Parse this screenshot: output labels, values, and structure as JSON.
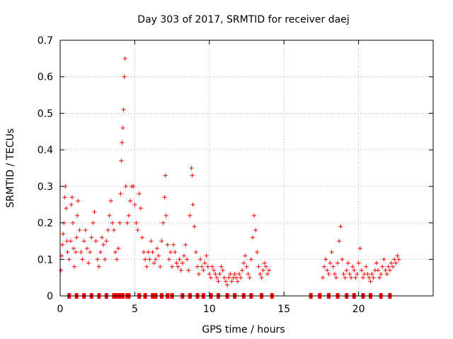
{
  "chart_data": {
    "type": "scatter",
    "title": "Day 303 of 2017, SRMTID for receiver daej",
    "xlabel": "GPS time / hours",
    "ylabel": "SRMTID / TECUs",
    "xlim": [
      0,
      25
    ],
    "ylim": [
      0,
      0.7
    ],
    "x_ticks": [
      0,
      5,
      10,
      15,
      20
    ],
    "x_tick_labels": [
      "0",
      "5",
      "10",
      "15",
      "20"
    ],
    "y_ticks": [
      0,
      0.1,
      0.2,
      0.3,
      0.4,
      0.5,
      0.6,
      0.7
    ],
    "y_tick_labels": [
      "0",
      "0.1",
      "0.2",
      "0.3",
      "0.4",
      "0.5",
      "0.6",
      "0.7"
    ],
    "grid": true,
    "marker": "+",
    "series_color": "#ff0000",
    "series": [
      {
        "name": "SRMTID",
        "points": [
          [
            0.05,
            0.07
          ],
          [
            0.1,
            0.11
          ],
          [
            0.15,
            0.14
          ],
          [
            0.2,
            0.17
          ],
          [
            0.25,
            0.2
          ],
          [
            0.3,
            0.27
          ],
          [
            0.35,
            0.3
          ],
          [
            0.4,
            0.24
          ],
          [
            0.45,
            0.15
          ],
          [
            0.5,
            0.12
          ],
          [
            0.6,
            0.1
          ],
          [
            0.7,
            0.15
          ],
          [
            0.75,
            0.25
          ],
          [
            0.8,
            0.27
          ],
          [
            0.85,
            0.2
          ],
          [
            0.9,
            0.13
          ],
          [
            0.95,
            0.08
          ],
          [
            1.05,
            0.12
          ],
          [
            1.1,
            0.16
          ],
          [
            1.15,
            0.22
          ],
          [
            1.2,
            0.26
          ],
          [
            1.3,
            0.18
          ],
          [
            1.4,
            0.12
          ],
          [
            1.5,
            0.1
          ],
          [
            1.6,
            0.15
          ],
          [
            1.7,
            0.18
          ],
          [
            1.8,
            0.13
          ],
          [
            1.9,
            0.09
          ],
          [
            2.0,
            0.12
          ],
          [
            2.1,
            0.16
          ],
          [
            2.2,
            0.2
          ],
          [
            2.3,
            0.23
          ],
          [
            2.4,
            0.15
          ],
          [
            2.5,
            0.1
          ],
          [
            2.6,
            0.08
          ],
          [
            2.7,
            0.12
          ],
          [
            2.8,
            0.16
          ],
          [
            2.9,
            0.14
          ],
          [
            3.0,
            0.1
          ],
          [
            3.1,
            0.15
          ],
          [
            3.2,
            0.18
          ],
          [
            3.3,
            0.22
          ],
          [
            3.4,
            0.26
          ],
          [
            3.5,
            0.2
          ],
          [
            3.6,
            0.18
          ],
          [
            3.7,
            0.12
          ],
          [
            3.8,
            0.1
          ],
          [
            3.9,
            0.13
          ],
          [
            4.0,
            0.2
          ],
          [
            4.05,
            0.28
          ],
          [
            4.1,
            0.37
          ],
          [
            4.15,
            0.42
          ],
          [
            4.2,
            0.46
          ],
          [
            4.25,
            0.51
          ],
          [
            4.3,
            0.6
          ],
          [
            4.35,
            0.65
          ],
          [
            4.4,
            0.3
          ],
          [
            4.5,
            0.2
          ],
          [
            4.6,
            0.22
          ],
          [
            4.7,
            0.26
          ],
          [
            4.8,
            0.3
          ],
          [
            4.9,
            0.3
          ],
          [
            5.0,
            0.25
          ],
          [
            5.1,
            0.2
          ],
          [
            5.2,
            0.18
          ],
          [
            5.3,
            0.28
          ],
          [
            5.4,
            0.24
          ],
          [
            5.5,
            0.16
          ],
          [
            5.6,
            0.12
          ],
          [
            5.7,
            0.1
          ],
          [
            5.8,
            0.08
          ],
          [
            5.9,
            0.12
          ],
          [
            6.0,
            0.1
          ],
          [
            6.1,
            0.15
          ],
          [
            6.2,
            0.12
          ],
          [
            6.3,
            0.09
          ],
          [
            6.4,
            0.1
          ],
          [
            6.5,
            0.13
          ],
          [
            6.6,
            0.11
          ],
          [
            6.7,
            0.08
          ],
          [
            6.8,
            0.15
          ],
          [
            6.9,
            0.2
          ],
          [
            7.0,
            0.27
          ],
          [
            7.05,
            0.33
          ],
          [
            7.1,
            0.22
          ],
          [
            7.2,
            0.14
          ],
          [
            7.3,
            0.1
          ],
          [
            7.4,
            0.12
          ],
          [
            7.5,
            0.08
          ],
          [
            7.6,
            0.14
          ],
          [
            7.7,
            0.12
          ],
          [
            7.8,
            0.09
          ],
          [
            7.9,
            0.08
          ],
          [
            8.0,
            0.1
          ],
          [
            8.1,
            0.07
          ],
          [
            8.2,
            0.09
          ],
          [
            8.3,
            0.11
          ],
          [
            8.4,
            0.14
          ],
          [
            8.5,
            0.1
          ],
          [
            8.6,
            0.07
          ],
          [
            8.7,
            0.22
          ],
          [
            8.8,
            0.35
          ],
          [
            8.85,
            0.33
          ],
          [
            8.9,
            0.25
          ],
          [
            9.0,
            0.19
          ],
          [
            9.1,
            0.12
          ],
          [
            9.2,
            0.08
          ],
          [
            9.3,
            0.06
          ],
          [
            9.4,
            0.1
          ],
          [
            9.5,
            0.08
          ],
          [
            9.6,
            0.07
          ],
          [
            9.7,
            0.09
          ],
          [
            9.8,
            0.11
          ],
          [
            9.9,
            0.08
          ],
          [
            10.0,
            0.06
          ],
          [
            10.1,
            0.05
          ],
          [
            10.2,
            0.08
          ],
          [
            10.3,
            0.07
          ],
          [
            10.4,
            0.06
          ],
          [
            10.5,
            0.05
          ],
          [
            10.6,
            0.04
          ],
          [
            10.7,
            0.06
          ],
          [
            10.8,
            0.08
          ],
          [
            10.9,
            0.07
          ],
          [
            11.0,
            0.05
          ],
          [
            11.1,
            0.04
          ],
          [
            11.2,
            0.03
          ],
          [
            11.3,
            0.05
          ],
          [
            11.4,
            0.06
          ],
          [
            11.5,
            0.04
          ],
          [
            11.6,
            0.05
          ],
          [
            11.7,
            0.06
          ],
          [
            11.8,
            0.05
          ],
          [
            11.9,
            0.04
          ],
          [
            12.0,
            0.06
          ],
          [
            12.1,
            0.05
          ],
          [
            12.2,
            0.07
          ],
          [
            12.3,
            0.09
          ],
          [
            12.4,
            0.11
          ],
          [
            12.5,
            0.08
          ],
          [
            12.6,
            0.06
          ],
          [
            12.7,
            0.05
          ],
          [
            12.8,
            0.1
          ],
          [
            12.9,
            0.16
          ],
          [
            13.0,
            0.22
          ],
          [
            13.1,
            0.18
          ],
          [
            13.2,
            0.12
          ],
          [
            13.3,
            0.08
          ],
          [
            13.4,
            0.06
          ],
          [
            13.5,
            0.05
          ],
          [
            13.6,
            0.07
          ],
          [
            13.7,
            0.09
          ],
          [
            13.8,
            0.08
          ],
          [
            13.9,
            0.06
          ],
          [
            14.0,
            0.07
          ],
          [
            17.6,
            0.05
          ],
          [
            17.7,
            0.08
          ],
          [
            17.8,
            0.1
          ],
          [
            17.9,
            0.07
          ],
          [
            18.0,
            0.06
          ],
          [
            18.1,
            0.09
          ],
          [
            18.2,
            0.12
          ],
          [
            18.3,
            0.08
          ],
          [
            18.4,
            0.06
          ],
          [
            18.5,
            0.05
          ],
          [
            18.6,
            0.09
          ],
          [
            18.7,
            0.15
          ],
          [
            18.8,
            0.19
          ],
          [
            18.9,
            0.1
          ],
          [
            19.0,
            0.06
          ],
          [
            19.1,
            0.05
          ],
          [
            19.2,
            0.07
          ],
          [
            19.3,
            0.09
          ],
          [
            19.4,
            0.06
          ],
          [
            19.5,
            0.05
          ],
          [
            19.6,
            0.08
          ],
          [
            19.7,
            0.07
          ],
          [
            19.8,
            0.05
          ],
          [
            19.9,
            0.06
          ],
          [
            20.0,
            0.09
          ],
          [
            20.1,
            0.13
          ],
          [
            20.2,
            0.07
          ],
          [
            20.3,
            0.05
          ],
          [
            20.4,
            0.06
          ],
          [
            20.5,
            0.08
          ],
          [
            20.6,
            0.06
          ],
          [
            20.7,
            0.05
          ],
          [
            20.8,
            0.04
          ],
          [
            20.9,
            0.06
          ],
          [
            21.0,
            0.05
          ],
          [
            21.1,
            0.07
          ],
          [
            21.2,
            0.09
          ],
          [
            21.3,
            0.07
          ],
          [
            21.4,
            0.05
          ],
          [
            21.5,
            0.06
          ],
          [
            21.6,
            0.08
          ],
          [
            21.7,
            0.1
          ],
          [
            21.8,
            0.07
          ],
          [
            21.9,
            0.06
          ],
          [
            22.0,
            0.08
          ],
          [
            22.1,
            0.07
          ],
          [
            22.2,
            0.09
          ],
          [
            22.3,
            0.08
          ],
          [
            22.4,
            0.1
          ],
          [
            22.5,
            0.09
          ],
          [
            22.6,
            0.11
          ],
          [
            22.7,
            0.1
          ]
        ]
      }
    ],
    "zero_markers": [
      0.6,
      1.1,
      1.6,
      2.1,
      2.6,
      3.1,
      3.6,
      3.8,
      4.0,
      4.2,
      4.5,
      4.6,
      5.3,
      5.7,
      6.2,
      6.4,
      6.8,
      7.2,
      7.5,
      8.2,
      8.7,
      9.2,
      9.6,
      10.1,
      10.6,
      11.2,
      11.7,
      12.3,
      12.8,
      13.5,
      14.2,
      16.8,
      17.4,
      18.0,
      18.6,
      19.2,
      19.7,
      20.3,
      20.8,
      21.5,
      22.1
    ]
  }
}
